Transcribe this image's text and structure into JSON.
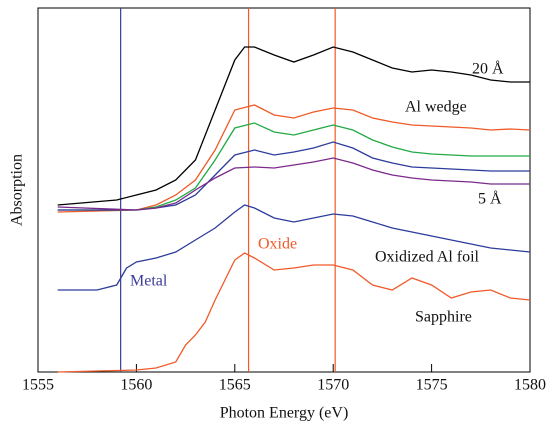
{
  "chart_data": {
    "type": "line",
    "xlabel": "Photon Energy (eV)",
    "ylabel": "Absorption",
    "xlim": [
      1555,
      1580
    ],
    "xticks": [
      1555,
      1560,
      1565,
      1570,
      1575,
      1580
    ],
    "ylim": [
      0,
      364
    ],
    "series": [
      {
        "name": "20 Å",
        "color": "#000000",
        "x": [
          1556,
          1559,
          1560,
          1561,
          1562,
          1563,
          1564,
          1565,
          1565.5,
          1566,
          1567,
          1568,
          1569,
          1570,
          1571,
          1572,
          1573,
          1574,
          1575,
          1576,
          1577,
          1578,
          1579,
          1580
        ],
        "values": [
          167,
          172,
          177,
          182,
          192,
          212,
          262,
          312,
          325,
          325,
          317,
          310,
          317,
          325,
          320,
          312,
          304,
          300,
          302,
          300,
          297,
          292,
          290,
          290
        ]
      },
      {
        "name": "Al wedge",
        "color": "#f05a28",
        "x": [
          1556,
          1560,
          1561,
          1562,
          1563,
          1564,
          1565,
          1566,
          1567,
          1568,
          1569,
          1570,
          1571,
          1572,
          1573,
          1574,
          1575,
          1576,
          1577,
          1578,
          1579,
          1580
        ],
        "values": [
          160,
          162,
          167,
          177,
          192,
          222,
          262,
          267,
          257,
          254,
          260,
          264,
          262,
          254,
          250,
          247,
          246,
          245,
          244,
          242,
          243,
          242
        ]
      },
      {
        "color": "#22aa44",
        "x": [
          1556,
          1560,
          1561,
          1562,
          1563,
          1564,
          1565,
          1566,
          1567,
          1568,
          1569,
          1570,
          1571,
          1572,
          1573,
          1574,
          1575,
          1576,
          1577,
          1578,
          1579,
          1580
        ],
        "values": [
          162,
          162,
          165,
          172,
          184,
          212,
          244,
          249,
          240,
          237,
          242,
          247,
          242,
          232,
          225,
          220,
          218,
          217,
          216,
          216,
          216,
          216
        ]
      },
      {
        "color": "#2c3c9c",
        "x": [
          1556,
          1560,
          1561,
          1562,
          1563,
          1564,
          1565,
          1566,
          1567,
          1568,
          1569,
          1570,
          1571,
          1572,
          1573,
          1574,
          1575,
          1576,
          1577,
          1578,
          1579,
          1580
        ],
        "values": [
          162,
          162,
          164,
          167,
          177,
          197,
          217,
          222,
          217,
          220,
          224,
          230,
          224,
          214,
          209,
          205,
          204,
          203,
          202,
          201,
          201,
          201
        ]
      },
      {
        "name": "5 Å",
        "color": "#7a2a8a",
        "x": [
          1556,
          1560,
          1561,
          1562,
          1563,
          1564,
          1565,
          1566,
          1567,
          1568,
          1569,
          1570,
          1571,
          1572,
          1573,
          1574,
          1575,
          1576,
          1577,
          1578,
          1579,
          1580
        ],
        "values": [
          165,
          162,
          164,
          169,
          182,
          194,
          204,
          205,
          204,
          207,
          210,
          214,
          209,
          202,
          197,
          194,
          192,
          191,
          190,
          188,
          188,
          188
        ]
      },
      {
        "name": "Oxidized Al foil",
        "color": "#2c3c9c",
        "x": [
          1556,
          1557,
          1558,
          1559,
          1559.5,
          1560,
          1561,
          1562,
          1563,
          1564,
          1565,
          1565.5,
          1566,
          1567,
          1568,
          1569,
          1570,
          1571,
          1572,
          1573,
          1574,
          1575,
          1576,
          1577,
          1578,
          1579,
          1580
        ],
        "values": [
          82,
          82,
          82,
          87,
          104,
          110,
          114,
          120,
          132,
          144,
          160,
          167,
          164,
          154,
          150,
          154,
          158,
          156,
          150,
          144,
          140,
          136,
          132,
          128,
          124,
          122,
          120
        ]
      },
      {
        "name": "Sapphire",
        "color": "#f05a28",
        "x": [
          1556,
          1560,
          1561,
          1562,
          1562.5,
          1563,
          1563.5,
          1564,
          1565,
          1565.5,
          1566,
          1567,
          1568,
          1569,
          1570,
          1571,
          1572,
          1573,
          1574,
          1575,
          1576,
          1577,
          1578,
          1579,
          1580
        ],
        "values": [
          0,
          2,
          4,
          10,
          27,
          37,
          50,
          72,
          112,
          119,
          114,
          102,
          104,
          107,
          107,
          102,
          87,
          82,
          94,
          87,
          74,
          80,
          82,
          74,
          72
        ]
      }
    ],
    "reference_lines": [
      {
        "x": 1559.2,
        "color": "#3b3b9a",
        "label": "Metal"
      },
      {
        "x": 1565.7,
        "color": "#f05a28",
        "label": "Oxide"
      },
      {
        "x": 1570.1,
        "color": "#f05a28"
      }
    ]
  }
}
